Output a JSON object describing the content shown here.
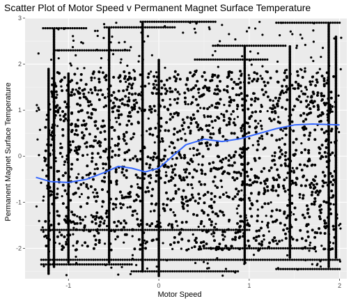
{
  "chart_data": {
    "type": "scatter",
    "title": "Scatter Plot of Motor Speed v Permanent Magnet Surface Temperature",
    "xlabel": "Motor Speed",
    "ylabel": "Permanent Magnet Surface Temperature",
    "xlim": [
      -1.48,
      2.08
    ],
    "ylim": [
      -2.66,
      3.0
    ],
    "x_ticks": [
      -1,
      0,
      1,
      2
    ],
    "y_ticks": [
      -2,
      -1,
      0,
      1,
      2,
      3
    ],
    "x_tick_labels": [
      "-1",
      "0",
      "1",
      "2"
    ],
    "y_tick_labels": [
      "-2",
      "-1",
      "0",
      "1",
      "2",
      "3"
    ],
    "grid": true,
    "legend": "none",
    "point_color": "#000000",
    "smooth_color": "#3366FF",
    "panel_color": "#EBEBEB",
    "series": [
      {
        "kind": "points",
        "x_range": [
          -1.36,
          2.02
        ],
        "y_range": [
          -2.6,
          2.92
        ]
      },
      {
        "kind": "smooth",
        "x": [
          -1.36,
          -1.2,
          -1.0,
          -0.8,
          -0.6,
          -0.45,
          -0.3,
          -0.15,
          0.0,
          0.15,
          0.3,
          0.5,
          0.7,
          0.9,
          1.1,
          1.3,
          1.5,
          1.7,
          1.85,
          2.0
        ],
        "y": [
          -0.46,
          -0.55,
          -0.57,
          -0.5,
          -0.35,
          -0.22,
          -0.26,
          -0.34,
          -0.26,
          0.0,
          0.25,
          0.37,
          0.32,
          0.38,
          0.49,
          0.6,
          0.68,
          0.7,
          0.69,
          0.68
        ]
      }
    ]
  }
}
